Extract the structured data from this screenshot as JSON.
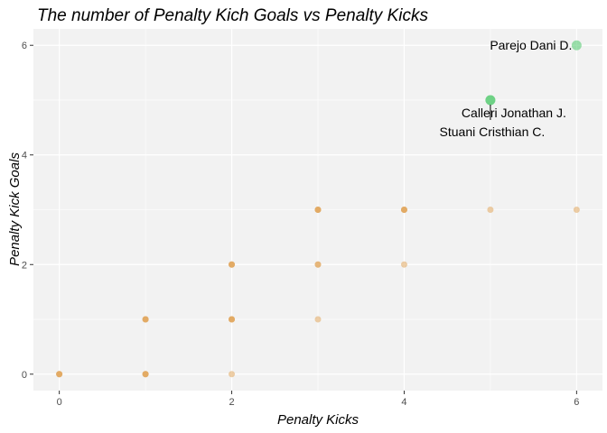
{
  "chart_data": {
    "type": "scatter",
    "title": "The number of Penalty Kich Goals vs Penalty Kicks",
    "xlabel": "Penalty Kicks",
    "ylabel": "Penalty Kick Goals",
    "xlim": [
      -0.3,
      6.3
    ],
    "ylim": [
      -0.3,
      6.3
    ],
    "xticks": [
      0,
      2,
      4,
      6
    ],
    "yticks": [
      0,
      2,
      4,
      6
    ],
    "grid": true,
    "colors": {
      "panel_background": "#f2f2f2",
      "grid": "#ffffff",
      "points": "#e0a050",
      "highlight": "#4cc96a"
    },
    "points": [
      {
        "x": 0,
        "y": 0
      },
      {
        "x": 0,
        "y": 0
      },
      {
        "x": 0,
        "y": 0
      },
      {
        "x": 1,
        "y": 0
      },
      {
        "x": 1,
        "y": 0
      },
      {
        "x": 1,
        "y": 0
      },
      {
        "x": 2,
        "y": 0
      },
      {
        "x": 1,
        "y": 1
      },
      {
        "x": 1,
        "y": 1
      },
      {
        "x": 1,
        "y": 1
      },
      {
        "x": 2,
        "y": 1
      },
      {
        "x": 2,
        "y": 1
      },
      {
        "x": 2,
        "y": 1
      },
      {
        "x": 3,
        "y": 1
      },
      {
        "x": 2,
        "y": 2
      },
      {
        "x": 2,
        "y": 2
      },
      {
        "x": 2,
        "y": 2
      },
      {
        "x": 3,
        "y": 2
      },
      {
        "x": 3,
        "y": 2
      },
      {
        "x": 4,
        "y": 2
      },
      {
        "x": 3,
        "y": 3
      },
      {
        "x": 3,
        "y": 3
      },
      {
        "x": 3,
        "y": 3
      },
      {
        "x": 4,
        "y": 3
      },
      {
        "x": 4,
        "y": 3
      },
      {
        "x": 4,
        "y": 3
      },
      {
        "x": 5,
        "y": 3
      },
      {
        "x": 6,
        "y": 3
      }
    ],
    "highlighted": [
      {
        "x": 6,
        "y": 6,
        "label": "Parejo Dani D."
      },
      {
        "x": 5,
        "y": 5,
        "label": "Calleri Jonathan  J."
      },
      {
        "x": 5,
        "y": 5,
        "label": "Stuani Cristhian  C."
      }
    ]
  }
}
